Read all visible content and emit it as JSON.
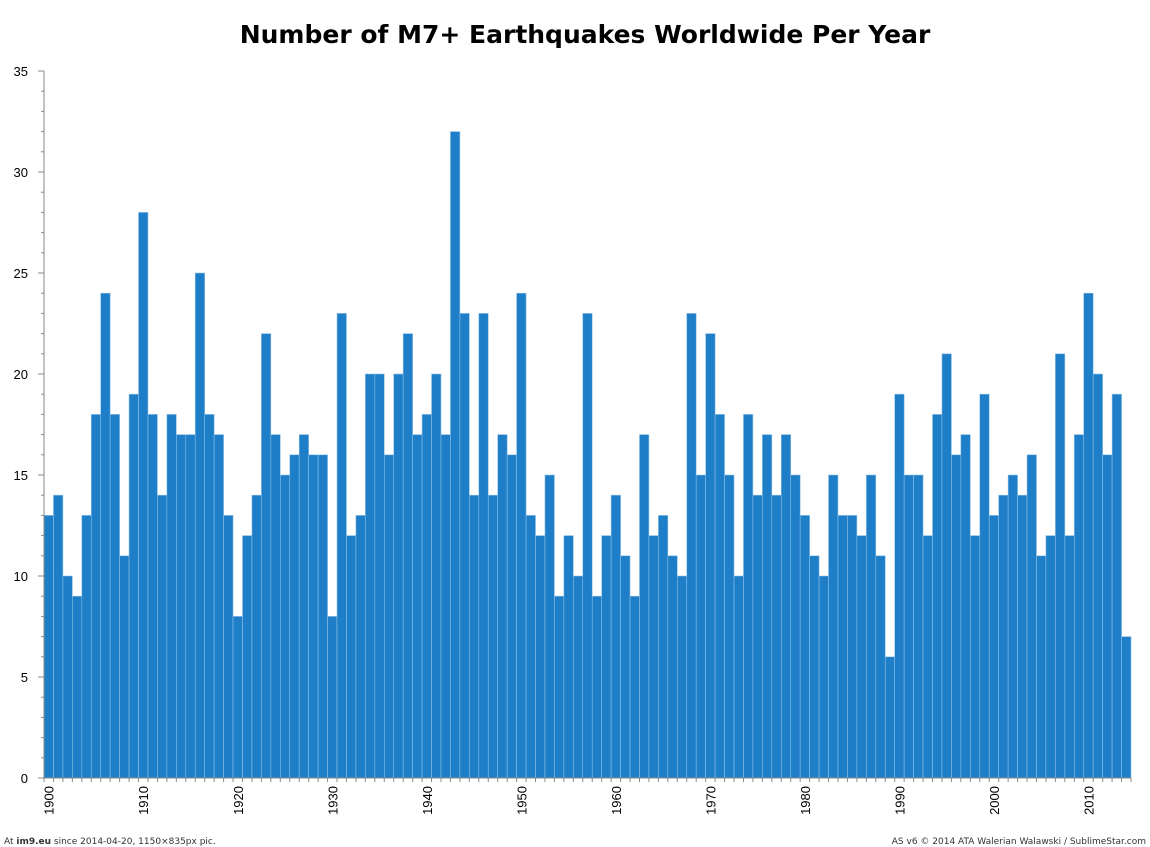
{
  "chart_data": {
    "type": "bar",
    "title": "Number of M7+ Earthquakes Worldwide Per Year",
    "xlabel": "",
    "ylabel": "",
    "ylim": [
      0,
      35
    ],
    "y_ticks": [
      0,
      5,
      10,
      15,
      20,
      25,
      30,
      35
    ],
    "x_start": 1900,
    "x_ticks": [
      "1900",
      "1910",
      "1920",
      "1930",
      "1940",
      "1950",
      "1960",
      "1970",
      "1980",
      "1990",
      "2000",
      "2010"
    ],
    "bar_color": "#1e7ec8",
    "grid": false,
    "legend": "none",
    "years": [
      1900,
      1901,
      1902,
      1903,
      1904,
      1905,
      1906,
      1907,
      1908,
      1909,
      1910,
      1911,
      1912,
      1913,
      1914,
      1915,
      1916,
      1917,
      1918,
      1919,
      1920,
      1921,
      1922,
      1923,
      1924,
      1925,
      1926,
      1927,
      1928,
      1929,
      1930,
      1931,
      1932,
      1933,
      1934,
      1935,
      1936,
      1937,
      1938,
      1939,
      1940,
      1941,
      1942,
      1943,
      1944,
      1945,
      1946,
      1947,
      1948,
      1949,
      1950,
      1951,
      1952,
      1953,
      1954,
      1955,
      1956,
      1957,
      1958,
      1959,
      1960,
      1961,
      1962,
      1963,
      1964,
      1965,
      1966,
      1967,
      1968,
      1969,
      1970,
      1971,
      1972,
      1973,
      1974,
      1975,
      1976,
      1977,
      1978,
      1979,
      1980,
      1981,
      1982,
      1983,
      1984,
      1985,
      1986,
      1987,
      1988,
      1989,
      1990,
      1991,
      1992,
      1993,
      1994,
      1995,
      1996,
      1997,
      1998,
      1999,
      2000,
      2001,
      2002,
      2003,
      2004,
      2005,
      2006,
      2007,
      2008,
      2009,
      2010,
      2011,
      2012,
      2013,
      2014
    ],
    "values": [
      13,
      14,
      10,
      9,
      13,
      18,
      24,
      18,
      11,
      19,
      28,
      18,
      14,
      18,
      17,
      17,
      25,
      18,
      17,
      13,
      8,
      12,
      14,
      22,
      17,
      15,
      16,
      17,
      16,
      16,
      8,
      23,
      12,
      13,
      20,
      20,
      16,
      20,
      22,
      17,
      18,
      20,
      17,
      32,
      23,
      14,
      23,
      14,
      17,
      16,
      24,
      13,
      12,
      15,
      9,
      12,
      10,
      23,
      9,
      12,
      14,
      11,
      9,
      17,
      12,
      13,
      11,
      10,
      23,
      15,
      22,
      18,
      15,
      10,
      18,
      14,
      17,
      14,
      17,
      15,
      13,
      11,
      10,
      15,
      13,
      13,
      12,
      15,
      11,
      6,
      19,
      15,
      15,
      12,
      18,
      21,
      16,
      17,
      12,
      19,
      13,
      14,
      15,
      14,
      16,
      11,
      12,
      21,
      12,
      17,
      24,
      20,
      16,
      19,
      7
    ]
  },
  "footer": {
    "left_prefix": "At ",
    "left_site": "im9.eu",
    "left_rest": "  since 2014-04-20, 1150×835px pic.",
    "right": "AS v6 © 2014 ATA Walerian Walawski / SublimeStar.com"
  }
}
